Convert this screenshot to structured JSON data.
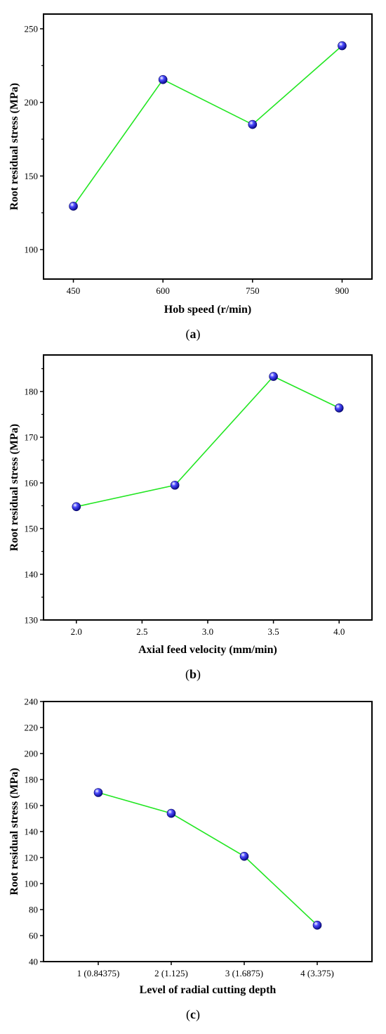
{
  "chart_data": [
    {
      "type": "line",
      "panel": "a",
      "caption_open": "(",
      "caption_letter": "a",
      "caption_close": ")",
      "xlabel": "Hob speed (r/min)",
      "ylabel": "Root residual stress (MPa)",
      "x_kind": "numeric",
      "xlim": [
        400,
        950
      ],
      "ylim": [
        80,
        260
      ],
      "xticks": [
        450,
        600,
        750,
        900
      ],
      "yticks": [
        100,
        150,
        200,
        250
      ],
      "y_minor_step": 25,
      "grid": false,
      "line_color": "#22e622",
      "marker_color": "#1a1adb",
      "x": [
        450,
        600,
        750,
        900
      ],
      "y": [
        129.5,
        215.5,
        185,
        238.5
      ]
    },
    {
      "type": "line",
      "panel": "b",
      "caption_open": "(",
      "caption_letter": "b",
      "caption_close": ")",
      "xlabel": "Axial feed velocity (mm/min)",
      "ylabel": "Root residual stress (MPa)",
      "x_kind": "numeric",
      "xlim": [
        1.75,
        4.25
      ],
      "ylim": [
        130,
        188
      ],
      "xticks": [
        "2.0",
        "2.5",
        "3.0",
        "3.5",
        "4.0"
      ],
      "yticks": [
        130,
        140,
        150,
        160,
        170,
        180
      ],
      "y_minor_step": 5,
      "grid": false,
      "line_color": "#22e622",
      "marker_color": "#1a1adb",
      "x": [
        2.0,
        2.75,
        3.5,
        4.0
      ],
      "y": [
        154.8,
        159.5,
        183.3,
        176.4
      ]
    },
    {
      "type": "line",
      "panel": "c",
      "caption_open": "(",
      "caption_letter": "c",
      "caption_close": ")",
      "xlabel": "Level of radial cutting depth",
      "ylabel": "Root residual stress (MPa)",
      "x_kind": "category",
      "categories": [
        "1 (0.84375)",
        "2 (1.125)",
        "3 (1.6875)",
        "4 (3.375)"
      ],
      "ylim": [
        40,
        240
      ],
      "yticks": [
        40,
        60,
        80,
        100,
        120,
        140,
        160,
        180,
        200,
        220,
        240
      ],
      "grid": false,
      "line_color": "#22e622",
      "marker_color": "#1a1adb",
      "y": [
        170,
        154,
        121,
        68
      ]
    }
  ]
}
